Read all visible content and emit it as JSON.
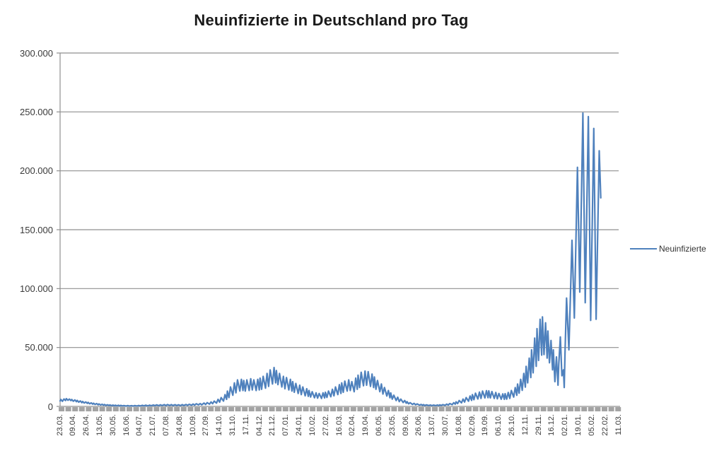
{
  "title": "Neuinfizierte in Deutschland pro Tag",
  "legend": {
    "label": "Neuinfizierte"
  },
  "colors": {
    "series": "#4F81BD",
    "gridline": "#8f8f8f",
    "axis_line": "#8f8f8f",
    "axis_tick_bar": "#a3a3a3",
    "axis_text": "#3a3a3a",
    "title_text": "#1a1a1a",
    "background": "#ffffff"
  },
  "chart_data": {
    "type": "line",
    "title": "Neuinfizierte in Deutschland pro Tag",
    "series_name": "Neuinfizierte",
    "xlabel": "",
    "ylabel": "",
    "ylim": [
      0,
      300000
    ],
    "ytick_interval": 50000,
    "ytick_labels": [
      "0",
      "50.000",
      "100.000",
      "150.000",
      "200.000",
      "250.000",
      "300.000"
    ],
    "x_tick_labels": [
      "23.03.",
      "09.04.",
      "26.04.",
      "13.05.",
      "30.05.",
      "16.06.",
      "04.07.",
      "21.07.",
      "07.08.",
      "24.08.",
      "10.09.",
      "27.09.",
      "14.10.",
      "31.10.",
      "17.11.",
      "04.12.",
      "21.12.",
      "07.01.",
      "24.01.",
      "10.02.",
      "27.02.",
      "16.03.",
      "02.04.",
      "19.04.",
      "06.05.",
      "23.05.",
      "09.06.",
      "26.06.",
      "13.07.",
      "30.07.",
      "16.08.",
      "02.09.",
      "19.09.",
      "06.10.",
      "26.10.",
      "12.11.",
      "29.11.",
      "16.12.",
      "02.01.",
      "19.01.",
      "05.02.",
      "22.02.",
      "11.03."
    ],
    "x_axis_total_days": 718,
    "grid": "horizontal-major",
    "legend_position": "right",
    "points_format": "[day_index_from_23.03.2020, daily_new_infections]",
    "points": [
      [
        0,
        4600
      ],
      [
        1,
        5900
      ],
      [
        3,
        4300
      ],
      [
        5,
        6300
      ],
      [
        7,
        5000
      ],
      [
        8,
        6600
      ],
      [
        10,
        5200
      ],
      [
        12,
        6200
      ],
      [
        14,
        4900
      ],
      [
        15,
        5900
      ],
      [
        17,
        4400
      ],
      [
        19,
        5500
      ],
      [
        21,
        4000
      ],
      [
        22,
        5100
      ],
      [
        24,
        3600
      ],
      [
        26,
        4600
      ],
      [
        28,
        3200
      ],
      [
        29,
        4200
      ],
      [
        31,
        2900
      ],
      [
        33,
        3800
      ],
      [
        35,
        2600
      ],
      [
        36,
        3400
      ],
      [
        38,
        2200
      ],
      [
        40,
        3000
      ],
      [
        42,
        1900
      ],
      [
        43,
        2700
      ],
      [
        45,
        1700
      ],
      [
        47,
        2400
      ],
      [
        49,
        1400
      ],
      [
        50,
        2100
      ],
      [
        52,
        1200
      ],
      [
        54,
        1800
      ],
      [
        56,
        1000
      ],
      [
        57,
        1600
      ],
      [
        59,
        900
      ],
      [
        61,
        1400
      ],
      [
        63,
        750
      ],
      [
        64,
        1250
      ],
      [
        66,
        650
      ],
      [
        68,
        1100
      ],
      [
        70,
        550
      ],
      [
        71,
        1000
      ],
      [
        73,
        500
      ],
      [
        75,
        950
      ],
      [
        77,
        450
      ],
      [
        78,
        900
      ],
      [
        80,
        400
      ],
      [
        82,
        750
      ],
      [
        85,
        350
      ],
      [
        87,
        700
      ],
      [
        89,
        300
      ],
      [
        92,
        650
      ],
      [
        94,
        300
      ],
      [
        96,
        700
      ],
      [
        99,
        350
      ],
      [
        101,
        800
      ],
      [
        103,
        400
      ],
      [
        106,
        900
      ],
      [
        108,
        450
      ],
      [
        110,
        1000
      ],
      [
        113,
        500
      ],
      [
        115,
        1100
      ],
      [
        117,
        550
      ],
      [
        120,
        1200
      ],
      [
        122,
        600
      ],
      [
        124,
        1300
      ],
      [
        127,
        650
      ],
      [
        129,
        1400
      ],
      [
        131,
        700
      ],
      [
        134,
        1500
      ],
      [
        136,
        750
      ],
      [
        138,
        1550
      ],
      [
        141,
        800
      ],
      [
        143,
        1500
      ],
      [
        145,
        800
      ],
      [
        148,
        1450
      ],
      [
        150,
        750
      ],
      [
        152,
        1400
      ],
      [
        155,
        700
      ],
      [
        157,
        1500
      ],
      [
        159,
        800
      ],
      [
        162,
        1600
      ],
      [
        164,
        900
      ],
      [
        166,
        1800
      ],
      [
        169,
        1000
      ],
      [
        171,
        2000
      ],
      [
        173,
        1100
      ],
      [
        175,
        2200
      ],
      [
        178,
        1300
      ],
      [
        180,
        2400
      ],
      [
        182,
        1400
      ],
      [
        185,
        2800
      ],
      [
        187,
        1600
      ],
      [
        189,
        3200
      ],
      [
        192,
        1900
      ],
      [
        194,
        3800
      ],
      [
        196,
        2300
      ],
      [
        198,
        4500
      ],
      [
        201,
        2800
      ],
      [
        203,
        6000
      ],
      [
        205,
        3600
      ],
      [
        207,
        7500
      ],
      [
        210,
        4500
      ],
      [
        212,
        10000
      ],
      [
        214,
        6000
      ],
      [
        215,
        13000
      ],
      [
        217,
        7500
      ],
      [
        219,
        16500
      ],
      [
        222,
        9500
      ],
      [
        224,
        20000
      ],
      [
        226,
        11500
      ],
      [
        228,
        22500
      ],
      [
        231,
        13000
      ],
      [
        233,
        23000
      ],
      [
        235,
        13500
      ],
      [
        236,
        22000
      ],
      [
        238,
        13000
      ],
      [
        240,
        22500
      ],
      [
        243,
        13500
      ],
      [
        245,
        23500
      ],
      [
        247,
        14000
      ],
      [
        249,
        22500
      ],
      [
        252,
        13500
      ],
      [
        254,
        23000
      ],
      [
        256,
        14000
      ],
      [
        257,
        24000
      ],
      [
        259,
        14500
      ],
      [
        261,
        25500
      ],
      [
        264,
        15500
      ],
      [
        266,
        28000
      ],
      [
        268,
        17000
      ],
      [
        270,
        31000
      ],
      [
        273,
        19000
      ],
      [
        275,
        33000
      ],
      [
        277,
        20000
      ],
      [
        278,
        30500
      ],
      [
        280,
        18500
      ],
      [
        282,
        28000
      ],
      [
        285,
        16500
      ],
      [
        287,
        25500
      ],
      [
        289,
        15000
      ],
      [
        291,
        24500
      ],
      [
        294,
        14000
      ],
      [
        296,
        23000
      ],
      [
        298,
        13000
      ],
      [
        299,
        21000
      ],
      [
        301,
        12000
      ],
      [
        303,
        19500
      ],
      [
        306,
        11000
      ],
      [
        308,
        18000
      ],
      [
        310,
        10000
      ],
      [
        312,
        16500
      ],
      [
        315,
        9000
      ],
      [
        317,
        15000
      ],
      [
        319,
        8500
      ],
      [
        320,
        13500
      ],
      [
        322,
        8000
      ],
      [
        324,
        12500
      ],
      [
        327,
        7300
      ],
      [
        329,
        11500
      ],
      [
        331,
        7000
      ],
      [
        333,
        11000
      ],
      [
        336,
        6800
      ],
      [
        338,
        11500
      ],
      [
        340,
        7200
      ],
      [
        341,
        12000
      ],
      [
        343,
        7600
      ],
      [
        345,
        13000
      ],
      [
        348,
        8200
      ],
      [
        350,
        14500
      ],
      [
        352,
        9000
      ],
      [
        354,
        16500
      ],
      [
        357,
        10000
      ],
      [
        359,
        18500
      ],
      [
        361,
        11000
      ],
      [
        362,
        20000
      ],
      [
        364,
        12000
      ],
      [
        366,
        21500
      ],
      [
        369,
        13000
      ],
      [
        371,
        22500
      ],
      [
        373,
        13500
      ],
      [
        375,
        21000
      ],
      [
        378,
        12500
      ],
      [
        380,
        24000
      ],
      [
        382,
        14500
      ],
      [
        383,
        26500
      ],
      [
        385,
        16000
      ],
      [
        387,
        29000
      ],
      [
        390,
        17500
      ],
      [
        392,
        30000
      ],
      [
        394,
        18000
      ],
      [
        396,
        29500
      ],
      [
        399,
        17000
      ],
      [
        401,
        27500
      ],
      [
        403,
        16000
      ],
      [
        404,
        25000
      ],
      [
        406,
        14500
      ],
      [
        408,
        22000
      ],
      [
        411,
        12500
      ],
      [
        413,
        19000
      ],
      [
        415,
        10500
      ],
      [
        417,
        16000
      ],
      [
        420,
        8800
      ],
      [
        422,
        13500
      ],
      [
        424,
        7300
      ],
      [
        425,
        11500
      ],
      [
        427,
        6200
      ],
      [
        429,
        9500
      ],
      [
        432,
        5000
      ],
      [
        434,
        7800
      ],
      [
        436,
        4100
      ],
      [
        438,
        6200
      ],
      [
        441,
        3300
      ],
      [
        443,
        5000
      ],
      [
        445,
        2700
      ],
      [
        446,
        4000
      ],
      [
        448,
        2200
      ],
      [
        450,
        3200
      ],
      [
        453,
        1700
      ],
      [
        455,
        2600
      ],
      [
        457,
        1400
      ],
      [
        459,
        2100
      ],
      [
        462,
        1100
      ],
      [
        464,
        1700
      ],
      [
        466,
        900
      ],
      [
        467,
        1500
      ],
      [
        469,
        800
      ],
      [
        471,
        1300
      ],
      [
        474,
        700
      ],
      [
        476,
        1200
      ],
      [
        478,
        650
      ],
      [
        480,
        1150
      ],
      [
        483,
        650
      ],
      [
        485,
        1200
      ],
      [
        487,
        700
      ],
      [
        488,
        1300
      ],
      [
        490,
        800
      ],
      [
        492,
        1500
      ],
      [
        495,
        950
      ],
      [
        497,
        1900
      ],
      [
        499,
        1200
      ],
      [
        501,
        2400
      ],
      [
        504,
        1500
      ],
      [
        506,
        3100
      ],
      [
        508,
        1900
      ],
      [
        509,
        3900
      ],
      [
        511,
        2400
      ],
      [
        513,
        5000
      ],
      [
        516,
        3000
      ],
      [
        518,
        6200
      ],
      [
        520,
        3700
      ],
      [
        522,
        7500
      ],
      [
        525,
        4400
      ],
      [
        527,
        8800
      ],
      [
        529,
        5100
      ],
      [
        530,
        10000
      ],
      [
        532,
        5700
      ],
      [
        534,
        11200
      ],
      [
        537,
        6300
      ],
      [
        539,
        12200
      ],
      [
        541,
        6800
      ],
      [
        543,
        13000
      ],
      [
        546,
        7200
      ],
      [
        548,
        13400
      ],
      [
        550,
        7400
      ],
      [
        551,
        13200
      ],
      [
        553,
        7200
      ],
      [
        555,
        12600
      ],
      [
        558,
        6800
      ],
      [
        560,
        11800
      ],
      [
        562,
        6400
      ],
      [
        564,
        11000
      ],
      [
        567,
        6100
      ],
      [
        569,
        10600
      ],
      [
        571,
        6000
      ],
      [
        572,
        10800
      ],
      [
        574,
        6200
      ],
      [
        576,
        11800
      ],
      [
        578,
        6800
      ],
      [
        580,
        13500
      ],
      [
        583,
        7900
      ],
      [
        585,
        16000
      ],
      [
        587,
        9400
      ],
      [
        588,
        19000
      ],
      [
        590,
        11200
      ],
      [
        592,
        23000
      ],
      [
        594,
        13600
      ],
      [
        596,
        28000
      ],
      [
        598,
        16400
      ],
      [
        599,
        34000
      ],
      [
        601,
        20000
      ],
      [
        603,
        41000
      ],
      [
        605,
        24500
      ],
      [
        606,
        48000
      ],
      [
        608,
        28500
      ],
      [
        610,
        58000
      ],
      [
        612,
        34000
      ],
      [
        613,
        66000
      ],
      [
        615,
        39000
      ],
      [
        617,
        74000
      ],
      [
        619,
        43500
      ],
      [
        620,
        76000
      ],
      [
        622,
        44000
      ],
      [
        624,
        71000
      ],
      [
        626,
        41000
      ],
      [
        627,
        64000
      ],
      [
        629,
        37000
      ],
      [
        631,
        56000
      ],
      [
        633,
        31000
      ],
      [
        634,
        48000
      ],
      [
        636,
        21000
      ],
      [
        638,
        42000
      ],
      [
        640,
        18000
      ],
      [
        641,
        36000
      ],
      [
        643,
        59000
      ],
      [
        645,
        26000
      ],
      [
        647,
        31000
      ],
      [
        648,
        16000
      ],
      [
        649,
        45000
      ],
      [
        651,
        92000
      ],
      [
        654,
        48000
      ],
      [
        658,
        141000
      ],
      [
        661,
        75000
      ],
      [
        665,
        203000
      ],
      [
        668,
        97000
      ],
      [
        672,
        249000
      ],
      [
        675,
        88000
      ],
      [
        679,
        246000
      ],
      [
        682,
        73000
      ],
      [
        686,
        236000
      ],
      [
        689,
        74000
      ],
      [
        693,
        217000
      ],
      [
        695,
        177000
      ]
    ]
  }
}
